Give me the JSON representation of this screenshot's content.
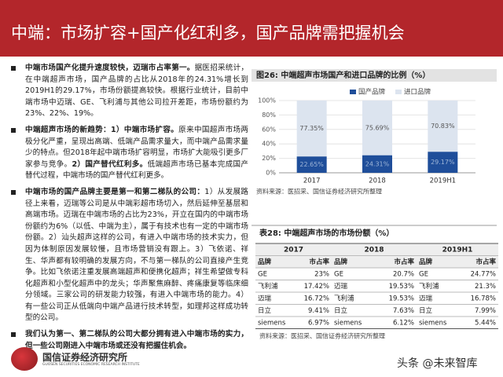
{
  "header": {
    "title": "中端：市场扩容+国产化红利多，国产品牌需把握机会"
  },
  "paragraphs": [
    [
      {
        "text": "中端市场国产化提升速度较快，迈瑞市占率第一。",
        "bold": true
      },
      {
        "text": "据医招采统计，在中端超声市场，国产品牌的占比从2018年的24.31%增长到2019H1的29.17%，市场份额提高较快。根据行业统计，目前中端市场中迈瑞、GE、飞利浦与其他公司拉开差距，市场份额约为23%、22%、19%。",
        "bold": false
      }
    ],
    [
      {
        "text": "中端超声市场的新趋势：1）中端市场扩容。",
        "bold": true
      },
      {
        "text": "原来中国超声市场两极分化严重，呈现出高端、低端产品需求量大，而中端产品需求量少的特点。但2018年起中端市场扩容明显，市场扩大能吸引更多厂家参与竞争。",
        "bold": false
      },
      {
        "text": "2）国产替代红利多。",
        "bold": true
      },
      {
        "text": "低端超声市场已基本完成国产替代过程，中端市场的国产替代红利更多。",
        "bold": false
      }
    ],
    [
      {
        "text": "中端市场的国产品牌主要是第一和第二梯队的公司：",
        "bold": true
      },
      {
        "text": "1）从发展路径上来看，迈瑞等公司是从中端彩超市场切入，然后延伸至基层和高端市场。迈瑞在中端市场的占比为23%，开立在国内的中端市场份额约为6%（以低、中端为主），属于有技术也有一定的中端市场份额。2）汕头超声这样的公司，有进入中端市场的技术实力，但因为体制原因发展较慢，且市场营销没有跟上。3）飞依诺、祥生、华声都有较明确的发展方向，不与第一梯队的公司直接产生竞争。比如飞依诺注重发展高端超声和便携化超声；祥生希望做专科化超声和小型化超声中的龙头；华声聚焦麻醉、疼痛康复等临床细分领域。三家公司的研发能力较强，有进入中端市场的能力。4）有一些公司正从低端向中端产品进行技术转型，如理邦这样成功转型的公司。",
        "bold": false
      }
    ],
    [
      {
        "text": "我们认为第一、第二梯队的公司大都分拥有进入中端市场的实力，但一些公司刚进入中端市场或还没有把握住机会。",
        "bold": true
      }
    ]
  ],
  "chart_data": {
    "type": "bar",
    "stacked": true,
    "title": "图26: 中端超声市场国产和进口品牌的比例（%）",
    "categories": [
      "2017",
      "2018",
      "2019H1"
    ],
    "series": [
      {
        "name": "国产品牌",
        "color": "#1f4e9a",
        "values": [
          22.65,
          24.31,
          29.17
        ],
        "value_labels": [
          "22.65%",
          "24.31%",
          "29.17%"
        ]
      },
      {
        "name": "进口品牌",
        "color": "#dce4ef",
        "values": [
          77.35,
          75.69,
          70.83
        ],
        "value_labels": [
          "77.35%",
          "75.69%",
          "70.83%"
        ]
      }
    ],
    "ylim": [
      0,
      100
    ],
    "yticks": [
      {
        "value": 0,
        "label": "0%"
      },
      {
        "value": 20,
        "label": "20%"
      },
      {
        "value": 40,
        "label": "40%"
      },
      {
        "value": 60,
        "label": "60%"
      },
      {
        "value": 80,
        "label": "80%"
      },
      {
        "value": 100,
        "label": "100%"
      }
    ],
    "source": "资料来源：医招采、国信证券经济研究所整理"
  },
  "table": {
    "title": "表28: 中端超声市场的市场份额（%）",
    "years": [
      "2017",
      "2018",
      "2019H1"
    ],
    "header": [
      "品牌",
      "市占率",
      "品牌",
      "市占率",
      "品牌",
      "市占率"
    ],
    "rows": [
      [
        "GE",
        "23%",
        "GE",
        "20.7%",
        "GE",
        "24.77%"
      ],
      [
        "飞利浦",
        "17.42%",
        "迈瑞",
        "19.53%",
        "飞利浦",
        "21.3%"
      ],
      [
        "迈瑞",
        "16.72%",
        "飞利浦",
        "19.53%",
        "迈瑞",
        "16.78%"
      ],
      [
        "日立",
        "9.41%",
        "日立",
        "7.63%",
        "日立",
        "7.99%"
      ],
      [
        "siemens",
        "6.97%",
        "siemens",
        "6.12%",
        "siemens",
        "5.44%"
      ]
    ],
    "source": "资料来源：医招采、国信证券经济研究所整理"
  },
  "footer": {
    "logo_text": "国信证券经济研究所",
    "logo_subtext": "GUOSEN SECURITIES ECONOMIC RESEARCH INSTITUTE",
    "watermark": "头条 @未来智库"
  }
}
